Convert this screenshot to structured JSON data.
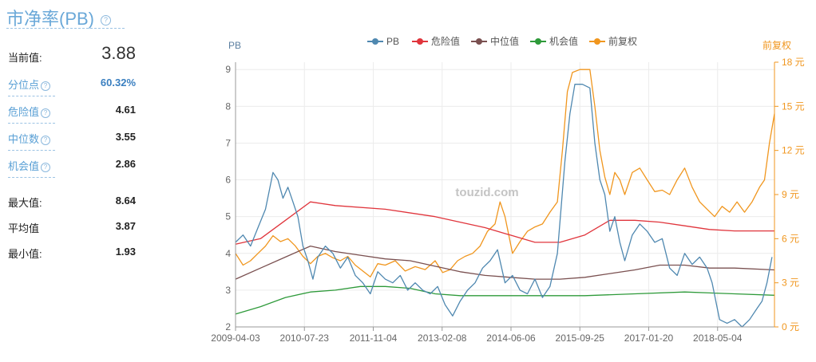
{
  "panel": {
    "title": "市净率(PB)",
    "help_glyph": "?",
    "rows": [
      {
        "label": "当前值:",
        "value": "3.88"
      },
      {
        "label": "分位点",
        "value": "60.32%"
      },
      {
        "label": "危险值",
        "value": "4.61"
      },
      {
        "label": "中位数",
        "value": "3.55"
      },
      {
        "label": "机会值",
        "value": "2.86"
      },
      {
        "label": "最大值:",
        "value": "8.64"
      },
      {
        "label": "平均值",
        "value": "3.87"
      },
      {
        "label": "最小值:",
        "value": "1.93"
      }
    ]
  },
  "chart_data": {
    "type": "line",
    "watermark": "touzid.com",
    "y_left_label": "PB",
    "y_right_label": "前复权",
    "y_left_range": [
      2,
      9.2
    ],
    "y_left_ticks": [
      "2",
      "3",
      "4",
      "5",
      "6",
      "7",
      "8",
      "9"
    ],
    "y_right_range": [
      0,
      18
    ],
    "y_right_ticks": [
      "0 元",
      "3 元",
      "6 元",
      "9 元",
      "12 元",
      "15 元",
      "18 元"
    ],
    "x_ticks": [
      "2009-04-03",
      "2010-07-23",
      "2011-11-04",
      "2013-02-08",
      "2014-06-06",
      "2015-09-25",
      "2017-01-20",
      "2018-05-04"
    ],
    "x_range": [
      0,
      10.8
    ],
    "legend_position": "top",
    "grid": true,
    "colors": {
      "pb": "#4f88b0",
      "danger": "#e0353c",
      "median": "#7a5050",
      "chance": "#2e9a3a",
      "price": "#f0961e"
    },
    "series": [
      {
        "name": "PB",
        "key": "pb",
        "axis": "left",
        "values": [
          [
            0,
            4.3
          ],
          [
            0.15,
            4.5
          ],
          [
            0.3,
            4.2
          ],
          [
            0.45,
            4.7
          ],
          [
            0.6,
            5.2
          ],
          [
            0.75,
            6.2
          ],
          [
            0.85,
            6.0
          ],
          [
            0.95,
            5.5
          ],
          [
            1.05,
            5.8
          ],
          [
            1.15,
            5.4
          ],
          [
            1.25,
            5.0
          ],
          [
            1.35,
            4.2
          ],
          [
            1.45,
            3.8
          ],
          [
            1.55,
            3.3
          ],
          [
            1.65,
            3.9
          ],
          [
            1.8,
            4.2
          ],
          [
            1.95,
            4.0
          ],
          [
            2.1,
            3.6
          ],
          [
            2.25,
            3.9
          ],
          [
            2.4,
            3.4
          ],
          [
            2.55,
            3.2
          ],
          [
            2.7,
            2.9
          ],
          [
            2.85,
            3.5
          ],
          [
            3.0,
            3.3
          ],
          [
            3.15,
            3.2
          ],
          [
            3.3,
            3.4
          ],
          [
            3.45,
            3.0
          ],
          [
            3.6,
            3.2
          ],
          [
            3.75,
            3.0
          ],
          [
            3.9,
            2.9
          ],
          [
            4.05,
            3.1
          ],
          [
            4.2,
            2.6
          ],
          [
            4.35,
            2.3
          ],
          [
            4.5,
            2.7
          ],
          [
            4.65,
            3.0
          ],
          [
            4.8,
            3.2
          ],
          [
            4.95,
            3.6
          ],
          [
            5.1,
            3.8
          ],
          [
            5.25,
            4.1
          ],
          [
            5.4,
            3.2
          ],
          [
            5.55,
            3.4
          ],
          [
            5.7,
            3.0
          ],
          [
            5.85,
            2.9
          ],
          [
            6.0,
            3.3
          ],
          [
            6.15,
            2.8
          ],
          [
            6.3,
            3.1
          ],
          [
            6.45,
            4.0
          ],
          [
            6.6,
            6.5
          ],
          [
            6.7,
            7.8
          ],
          [
            6.8,
            8.6
          ],
          [
            6.95,
            8.6
          ],
          [
            7.1,
            8.5
          ],
          [
            7.2,
            7.0
          ],
          [
            7.3,
            6.0
          ],
          [
            7.4,
            5.6
          ],
          [
            7.5,
            4.6
          ],
          [
            7.6,
            5.0
          ],
          [
            7.7,
            4.3
          ],
          [
            7.8,
            3.8
          ],
          [
            7.95,
            4.5
          ],
          [
            8.1,
            4.8
          ],
          [
            8.25,
            4.6
          ],
          [
            8.4,
            4.3
          ],
          [
            8.55,
            4.4
          ],
          [
            8.7,
            3.6
          ],
          [
            8.85,
            3.4
          ],
          [
            9.0,
            4.0
          ],
          [
            9.15,
            3.7
          ],
          [
            9.3,
            3.9
          ],
          [
            9.45,
            3.6
          ],
          [
            9.55,
            3.2
          ],
          [
            9.7,
            2.2
          ],
          [
            9.85,
            2.1
          ],
          [
            10.0,
            2.2
          ],
          [
            10.15,
            2.0
          ],
          [
            10.3,
            2.2
          ],
          [
            10.45,
            2.5
          ],
          [
            10.55,
            2.7
          ],
          [
            10.65,
            3.2
          ],
          [
            10.75,
            3.9
          ]
        ]
      },
      {
        "name": "危险值",
        "key": "danger",
        "axis": "left",
        "values": [
          [
            0,
            4.25
          ],
          [
            0.5,
            4.4
          ],
          [
            1.0,
            4.9
          ],
          [
            1.5,
            5.4
          ],
          [
            2.0,
            5.3
          ],
          [
            3.0,
            5.2
          ],
          [
            4.0,
            5.0
          ],
          [
            5.0,
            4.7
          ],
          [
            6.0,
            4.3
          ],
          [
            6.5,
            4.3
          ],
          [
            7.0,
            4.5
          ],
          [
            7.5,
            4.9
          ],
          [
            8.0,
            4.9
          ],
          [
            8.5,
            4.85
          ],
          [
            9.0,
            4.75
          ],
          [
            9.5,
            4.65
          ],
          [
            10.0,
            4.61
          ],
          [
            10.8,
            4.61
          ]
        ]
      },
      {
        "name": "中位值",
        "key": "median",
        "axis": "left",
        "values": [
          [
            0,
            3.3
          ],
          [
            0.5,
            3.6
          ],
          [
            1.0,
            3.9
          ],
          [
            1.5,
            4.2
          ],
          [
            2.0,
            4.05
          ],
          [
            2.5,
            3.95
          ],
          [
            3.0,
            3.85
          ],
          [
            3.5,
            3.8
          ],
          [
            4.0,
            3.65
          ],
          [
            4.5,
            3.5
          ],
          [
            5.0,
            3.4
          ],
          [
            5.5,
            3.35
          ],
          [
            6.0,
            3.3
          ],
          [
            6.5,
            3.3
          ],
          [
            7.0,
            3.35
          ],
          [
            7.5,
            3.45
          ],
          [
            8.0,
            3.55
          ],
          [
            8.5,
            3.68
          ],
          [
            9.0,
            3.68
          ],
          [
            9.5,
            3.6
          ],
          [
            10.0,
            3.6
          ],
          [
            10.8,
            3.55
          ]
        ]
      },
      {
        "name": "机会值",
        "key": "chance",
        "axis": "left",
        "values": [
          [
            0,
            2.35
          ],
          [
            0.5,
            2.55
          ],
          [
            1.0,
            2.8
          ],
          [
            1.5,
            2.95
          ],
          [
            2.0,
            3.0
          ],
          [
            2.5,
            3.1
          ],
          [
            3.0,
            3.1
          ],
          [
            3.5,
            3.05
          ],
          [
            4.0,
            2.9
          ],
          [
            4.5,
            2.85
          ],
          [
            5.0,
            2.85
          ],
          [
            6.0,
            2.85
          ],
          [
            7.0,
            2.85
          ],
          [
            8.0,
            2.9
          ],
          [
            9.0,
            2.95
          ],
          [
            10.0,
            2.9
          ],
          [
            10.8,
            2.86
          ]
        ]
      },
      {
        "name": "前复权",
        "key": "price",
        "axis": "right",
        "values": [
          [
            0,
            5.0
          ],
          [
            0.15,
            4.2
          ],
          [
            0.3,
            4.5
          ],
          [
            0.45,
            5.0
          ],
          [
            0.6,
            5.5
          ],
          [
            0.75,
            6.2
          ],
          [
            0.9,
            5.8
          ],
          [
            1.05,
            6.0
          ],
          [
            1.2,
            5.5
          ],
          [
            1.35,
            4.8
          ],
          [
            1.5,
            4.3
          ],
          [
            1.65,
            4.8
          ],
          [
            1.8,
            5.0
          ],
          [
            1.95,
            4.7
          ],
          [
            2.1,
            4.5
          ],
          [
            2.25,
            4.8
          ],
          [
            2.4,
            4.2
          ],
          [
            2.55,
            3.8
          ],
          [
            2.7,
            3.4
          ],
          [
            2.85,
            4.3
          ],
          [
            3.0,
            4.2
          ],
          [
            3.2,
            4.5
          ],
          [
            3.4,
            3.8
          ],
          [
            3.6,
            4.1
          ],
          [
            3.8,
            3.9
          ],
          [
            4.0,
            4.5
          ],
          [
            4.15,
            3.7
          ],
          [
            4.3,
            3.9
          ],
          [
            4.45,
            4.5
          ],
          [
            4.6,
            4.8
          ],
          [
            4.75,
            5.0
          ],
          [
            4.9,
            5.5
          ],
          [
            5.05,
            6.5
          ],
          [
            5.2,
            7.0
          ],
          [
            5.3,
            8.5
          ],
          [
            5.4,
            7.5
          ],
          [
            5.55,
            5.0
          ],
          [
            5.7,
            5.8
          ],
          [
            5.85,
            6.5
          ],
          [
            6.0,
            6.8
          ],
          [
            6.15,
            7.0
          ],
          [
            6.3,
            7.8
          ],
          [
            6.45,
            8.5
          ],
          [
            6.55,
            12.0
          ],
          [
            6.65,
            16.0
          ],
          [
            6.75,
            17.3
          ],
          [
            6.9,
            17.5
          ],
          [
            7.1,
            17.5
          ],
          [
            7.2,
            15.0
          ],
          [
            7.3,
            12.0
          ],
          [
            7.4,
            10.2
          ],
          [
            7.5,
            9.0
          ],
          [
            7.6,
            10.5
          ],
          [
            7.7,
            10.0
          ],
          [
            7.8,
            9.0
          ],
          [
            7.95,
            10.5
          ],
          [
            8.1,
            10.8
          ],
          [
            8.25,
            10.0
          ],
          [
            8.4,
            9.2
          ],
          [
            8.55,
            9.3
          ],
          [
            8.7,
            9.0
          ],
          [
            8.85,
            10.0
          ],
          [
            9.0,
            10.8
          ],
          [
            9.15,
            9.5
          ],
          [
            9.3,
            8.5
          ],
          [
            9.45,
            8.0
          ],
          [
            9.6,
            7.5
          ],
          [
            9.75,
            8.2
          ],
          [
            9.9,
            7.8
          ],
          [
            10.05,
            8.5
          ],
          [
            10.2,
            7.8
          ],
          [
            10.35,
            8.5
          ],
          [
            10.5,
            9.5
          ],
          [
            10.6,
            10.0
          ],
          [
            10.7,
            12.5
          ],
          [
            10.8,
            14.5
          ]
        ]
      }
    ]
  }
}
